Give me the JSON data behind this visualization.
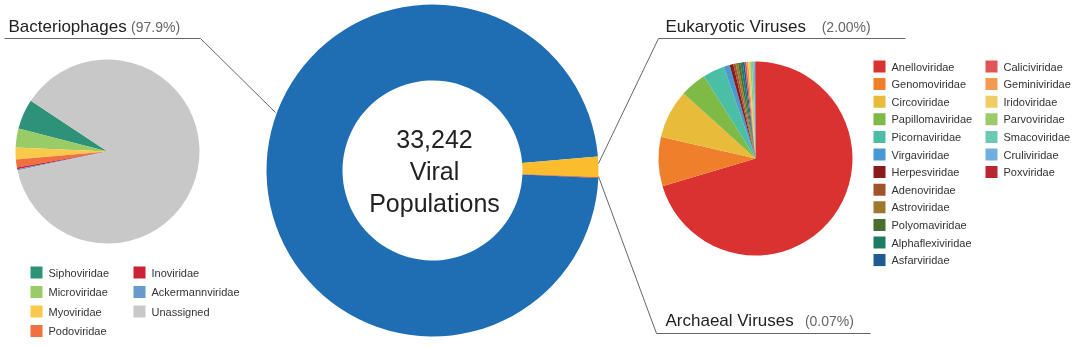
{
  "chart_data": [
    {
      "type": "pie",
      "categories": [
        "Siphoviridae",
        "Microviridae",
        "Myoviridae",
        "Podoviridae",
        "Inoviridae",
        "Ackermannviridae",
        "Unassigned"
      ],
      "values": [
        5.3,
        3.3,
        2.1,
        1.4,
        0.3,
        0.2,
        87.4
      ],
      "colors": [
        "#2e9279",
        "#99cc66",
        "#f8c94b",
        "#f07040",
        "#cc2233",
        "#6699cc",
        "#c8c8c8"
      ],
      "legend": "bottom"
    },
    {
      "type": "donut",
      "categories": [
        "Bacteriophages",
        "Eukaryotic Viruses",
        "Archaeal Viruses"
      ],
      "values": [
        97.9,
        2.0,
        0.07
      ],
      "value_labels": [
        "(97.9%)",
        "(2.00%)",
        "(0.07%)"
      ],
      "colors": [
        "#1f6eb4",
        "#fbbc2d",
        "#c0392b"
      ],
      "annotations": [
        "33,242 Viral Populations"
      ]
    },
    {
      "type": "pie",
      "categories": [
        "Anelloviridae",
        "Genomoviridae",
        "Circoviridae",
        "Papillomaviridae",
        "Picornaviridae",
        "Virgaviridae",
        "Herpesviridae",
        "Adenoviridae",
        "Astroviridae",
        "Polyomaviridae",
        "Alphaflexiviridae",
        "Asfarviridae",
        "Caliciviridae",
        "Geminiviridae",
        "Iridoviridae",
        "Parvoviridae",
        "Smacoviridae",
        "Cruliviridae",
        "Poxviridae"
      ],
      "values": [
        70.4,
        8.2,
        8.1,
        4.4,
        3.6,
        1.0,
        0.6,
        0.4,
        0.4,
        0.4,
        0.4,
        0.3,
        0.3,
        0.3,
        0.3,
        0.3,
        0.3,
        0.2,
        0.1
      ],
      "colors": [
        "#d93230",
        "#f07f2c",
        "#e8bb3a",
        "#7fba47",
        "#4bbfa6",
        "#4a98d4",
        "#8b1a1a",
        "#a0522d",
        "#9c7a2b",
        "#4a6e2f",
        "#1d7a63",
        "#1e5b94",
        "#e05555",
        "#f49a4e",
        "#f0cc66",
        "#9ccc6a",
        "#6cc9b3",
        "#6fb0e0",
        "#b92531"
      ],
      "legend": "right"
    }
  ]
}
